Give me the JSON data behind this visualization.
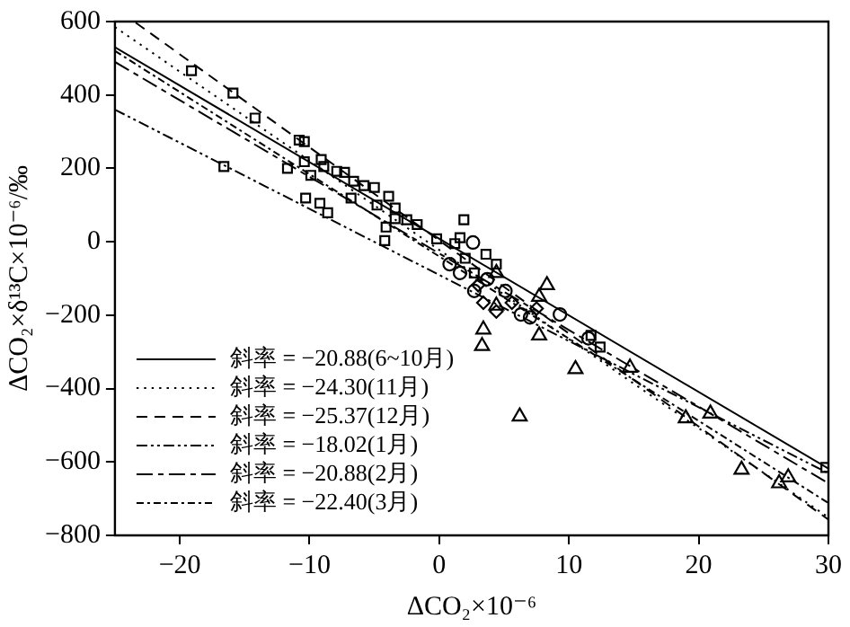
{
  "chart_data": {
    "type": "scatter",
    "xlabel": "ΔCO₂×10⁻⁶",
    "ylabel": "ΔCO₂×δ¹³C×10⁻⁶/‰",
    "xlim": [
      -25,
      30
    ],
    "ylim": [
      -800,
      600
    ],
    "xticks": [
      -20,
      -10,
      0,
      10,
      20,
      30
    ],
    "yticks": [
      -800,
      -600,
      -400,
      -200,
      0,
      200,
      400,
      600
    ],
    "grid": false,
    "legend": "bottom left",
    "series": [
      {
        "type": "scatter",
        "marker": "square",
        "color": "#000000",
        "x": [
          -19.1,
          -15.9,
          -14.2,
          -16.6,
          -11.7,
          -10.8,
          -10.4,
          -10.4,
          -10.3,
          -9.9,
          -9.1,
          -8.9,
          -9.2,
          -8.6,
          -7.9,
          -7.3,
          -6.6,
          -6.8,
          -5.8,
          -5.0,
          -4.8,
          -3.9,
          -4.1,
          -4.2,
          -3.4,
          -3.4,
          -2.5,
          -1.7,
          -0.2,
          1.9,
          1.2,
          1.6,
          3.6,
          4.4,
          2.0,
          2.7,
          11.7,
          12.4,
          29.8
        ],
        "values": [
          466,
          405,
          337,
          205,
          200,
          277,
          273,
          218,
          119,
          181,
          224,
          205,
          105,
          79,
          192,
          189,
          165,
          119,
          153,
          148,
          100,
          124,
          40,
          3,
          92,
          63,
          60,
          47,
          8,
          60,
          -5,
          11,
          -34,
          -61,
          -45,
          -85,
          -255,
          -287,
          -615
        ]
      },
      {
        "type": "scatter",
        "marker": "circle",
        "color": "#000000",
        "x": [
          2.6,
          0.8,
          1.6,
          5.1,
          6.3,
          7.0,
          9.3,
          11.5,
          2.7,
          3.7
        ],
        "values": [
          -2,
          -61,
          -85,
          -134,
          -198,
          -206,
          -198,
          -263,
          -134,
          -102
        ]
      },
      {
        "type": "scatter",
        "marker": "diamond",
        "color": "#000000",
        "x": [
          3.4,
          4.4,
          5.6,
          3.0,
          7.5
        ],
        "values": [
          -166,
          -190,
          -166,
          -118,
          -182
        ]
      },
      {
        "type": "scatter",
        "marker": "triangle",
        "color": "#000000",
        "x": [
          8.3,
          6.2,
          23.3,
          26.2,
          26.9,
          7.7,
          4.4
        ],
        "values": [
          -118,
          -476,
          -621,
          -658,
          -642,
          -150,
          -85
        ]
      },
      {
        "type": "scatter",
        "marker": "triangle",
        "color": "#000000",
        "x": [
          3.4,
          3.3,
          10.5,
          14.7,
          19.0,
          20.9,
          7.7,
          4.4
        ],
        "values": [
          -239,
          -284,
          -347,
          -343,
          -481,
          -468,
          -255,
          -174
        ]
      },
      {
        "type": "line",
        "name": "斜率 = −20.88(6~10月)",
        "line_style": "solid",
        "marker": "none",
        "color": "#000000",
        "x": [
          -25,
          30
        ],
        "values": [
          530,
          -618
        ]
      },
      {
        "type": "line",
        "name": "斜率 = −24.30(11月)",
        "line_style": "dotted",
        "marker": "none",
        "color": "#000000",
        "x": [
          -25,
          30
        ],
        "values": [
          585,
          -751
        ]
      },
      {
        "type": "line",
        "name": "斜率 = −25.37(12月)",
        "line_style": "dashed",
        "marker": "none",
        "color": "#000000",
        "x": [
          -23.4,
          30
        ],
        "values": [
          597,
          -757
        ]
      },
      {
        "type": "line",
        "name": "斜率 = −18.02(1月)",
        "line_style": "dashed",
        "marker": "none",
        "color": "#000000",
        "x": [
          -25,
          30
        ],
        "values": [
          360,
          -631
        ]
      },
      {
        "type": "line",
        "name": "斜率 = −20.88(2月)",
        "line_style": "dashed",
        "marker": "none",
        "color": "#000000",
        "x": [
          -25,
          30
        ],
        "values": [
          490,
          -658
        ]
      },
      {
        "type": "line",
        "name": "斜率 = −22.40(3月)",
        "line_style": "dashed",
        "marker": "none",
        "color": "#000000",
        "x": [
          -25,
          30
        ],
        "values": [
          520,
          -712
        ]
      }
    ]
  }
}
